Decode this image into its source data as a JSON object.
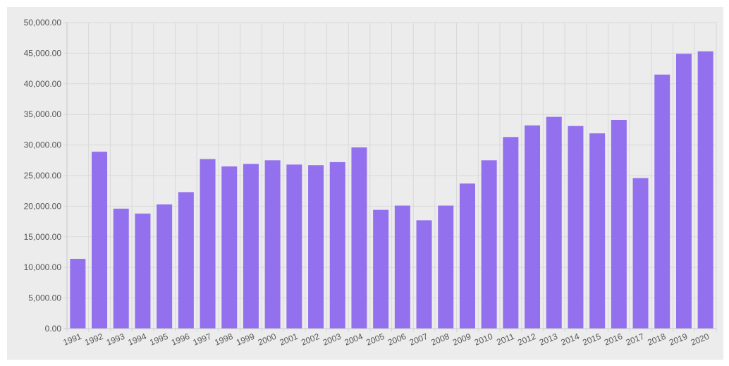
{
  "colors": {
    "bar": "#9370ee",
    "background": "#ececec",
    "grid": "#d9d9d9",
    "axis": "#c8c8c8",
    "text": "#555555"
  },
  "chart_data": {
    "type": "bar",
    "title": "",
    "xlabel": "",
    "ylabel": "",
    "ylim": [
      0,
      50000
    ],
    "grid": true,
    "legend": "none",
    "y_ticks": [
      0,
      5000,
      10000,
      15000,
      20000,
      25000,
      30000,
      35000,
      40000,
      45000,
      50000
    ],
    "y_tick_labels": [
      "0.00",
      "5,000.00",
      "10,000.00",
      "15,000.00",
      "20,000.00",
      "25,000.00",
      "30,000.00",
      "35,000.00",
      "40,000.00",
      "45,000.00",
      "50,000.00"
    ],
    "categories": [
      "1991",
      "1992",
      "1993",
      "1994",
      "1995",
      "1996",
      "1997",
      "1998",
      "1999",
      "2000",
      "2001",
      "2002",
      "2003",
      "2004",
      "2005",
      "2006",
      "2007",
      "2008",
      "2009",
      "2010",
      "2011",
      "2012",
      "2013",
      "2014",
      "2015",
      "2016",
      "2017",
      "2018",
      "2019",
      "2020"
    ],
    "values": [
      11400,
      28900,
      19600,
      18800,
      20300,
      22300,
      27700,
      26500,
      26900,
      27500,
      26800,
      26700,
      27200,
      29600,
      19400,
      20100,
      17700,
      20100,
      23700,
      27500,
      31300,
      33200,
      34600,
      33100,
      31900,
      34100,
      24600,
      41500,
      44900,
      45300
    ]
  }
}
